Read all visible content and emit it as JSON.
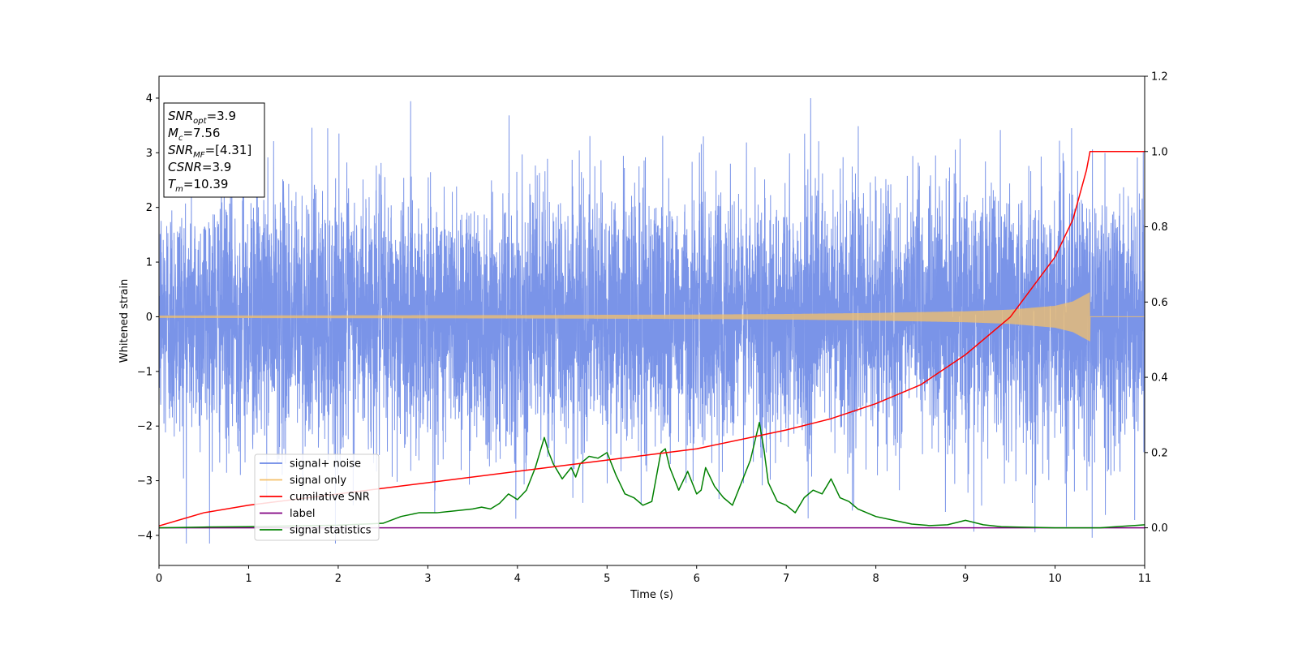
{
  "chart_data": {
    "type": "line",
    "xlabel": "Time (s)",
    "ylabel": "Whitened strain",
    "xlim": [
      0,
      11
    ],
    "ylim": [
      -4.55,
      4.4
    ],
    "ylim_right": [
      -0.1,
      1.2
    ],
    "x_ticks": [
      0,
      1,
      2,
      3,
      4,
      5,
      6,
      7,
      8,
      9,
      10,
      11
    ],
    "y_ticks": [
      -4,
      -3,
      -2,
      -1,
      0,
      1,
      2,
      3,
      4
    ],
    "y_ticks_right": [
      0.0,
      0.2,
      0.4,
      0.6,
      0.8,
      1.0,
      1.2
    ],
    "grid": false,
    "legend_position": "bottom-left",
    "info_box": {
      "lines": [
        {
          "base": "SNR",
          "sub": "opt",
          "value": "=3.9"
        },
        {
          "base": "M",
          "sub": "c",
          "value": "=7.56"
        },
        {
          "base": "SNR",
          "sub": "MF",
          "value": "=[4.31]"
        },
        {
          "base": "CSNR",
          "sub": "",
          "value": "=3.9"
        },
        {
          "base": "T",
          "sub": "m",
          "value": "=10.39"
        }
      ]
    },
    "series": [
      {
        "name": "signal+ noise",
        "color": "#6b88e6",
        "axis": "left",
        "noise_std": 1.15,
        "min": -4.15,
        "max": 4.0
      },
      {
        "name": "signal only",
        "color": "#f4c06a",
        "axis": "left",
        "merger_time": 10.39,
        "envelope": {
          "x": [
            0,
            2,
            4,
            6,
            7,
            8,
            9,
            9.5,
            10,
            10.2,
            10.39
          ],
          "y": [
            0.02,
            0.025,
            0.03,
            0.04,
            0.05,
            0.07,
            0.1,
            0.13,
            0.2,
            0.28,
            0.45
          ]
        }
      },
      {
        "name": "cumilative SNR",
        "color": "#ff0000",
        "axis": "right",
        "x": [
          0,
          0.5,
          1,
          2,
          3,
          4,
          5,
          6,
          7,
          7.5,
          8,
          8.5,
          9,
          9.5,
          10,
          10.2,
          10.35,
          10.39,
          11
        ],
        "y": [
          0.005,
          0.04,
          0.06,
          0.09,
          0.12,
          0.15,
          0.18,
          0.21,
          0.26,
          0.29,
          0.33,
          0.38,
          0.46,
          0.56,
          0.72,
          0.82,
          0.95,
          1.0,
          1.0
        ]
      },
      {
        "name": "label",
        "color": "#800080",
        "axis": "right",
        "x": [
          0,
          11
        ],
        "y": [
          0,
          0
        ]
      },
      {
        "name": "signal statistics",
        "color": "#008000",
        "axis": "right",
        "x": [
          0,
          0.5,
          1,
          1.5,
          2,
          2.5,
          2.7,
          2.9,
          3.1,
          3.3,
          3.5,
          3.6,
          3.7,
          3.8,
          3.9,
          4.0,
          4.1,
          4.2,
          4.3,
          4.35,
          4.4,
          4.5,
          4.6,
          4.65,
          4.7,
          4.8,
          4.9,
          5.0,
          5.1,
          5.2,
          5.3,
          5.4,
          5.5,
          5.6,
          5.65,
          5.7,
          5.8,
          5.9,
          6.0,
          6.05,
          6.1,
          6.2,
          6.3,
          6.4,
          6.5,
          6.6,
          6.7,
          6.75,
          6.8,
          6.9,
          7.0,
          7.1,
          7.2,
          7.3,
          7.4,
          7.5,
          7.6,
          7.7,
          7.8,
          7.9,
          8.0,
          8.2,
          8.4,
          8.6,
          8.8,
          9.0,
          9.2,
          9.4,
          9.6,
          10.0,
          10.5,
          11.0
        ],
        "y": [
          0.0,
          0.002,
          0.003,
          0.005,
          0.007,
          0.012,
          0.03,
          0.04,
          0.04,
          0.045,
          0.05,
          0.055,
          0.05,
          0.065,
          0.09,
          0.075,
          0.1,
          0.16,
          0.24,
          0.2,
          0.17,
          0.13,
          0.16,
          0.135,
          0.17,
          0.19,
          0.185,
          0.2,
          0.14,
          0.09,
          0.08,
          0.06,
          0.07,
          0.2,
          0.21,
          0.16,
          0.1,
          0.15,
          0.09,
          0.1,
          0.16,
          0.11,
          0.08,
          0.06,
          0.12,
          0.18,
          0.28,
          0.21,
          0.12,
          0.07,
          0.06,
          0.04,
          0.08,
          0.1,
          0.09,
          0.13,
          0.08,
          0.07,
          0.05,
          0.04,
          0.03,
          0.02,
          0.01,
          0.006,
          0.008,
          0.02,
          0.008,
          0.003,
          0.002,
          0.0,
          0.0,
          0.008
        ]
      }
    ]
  }
}
